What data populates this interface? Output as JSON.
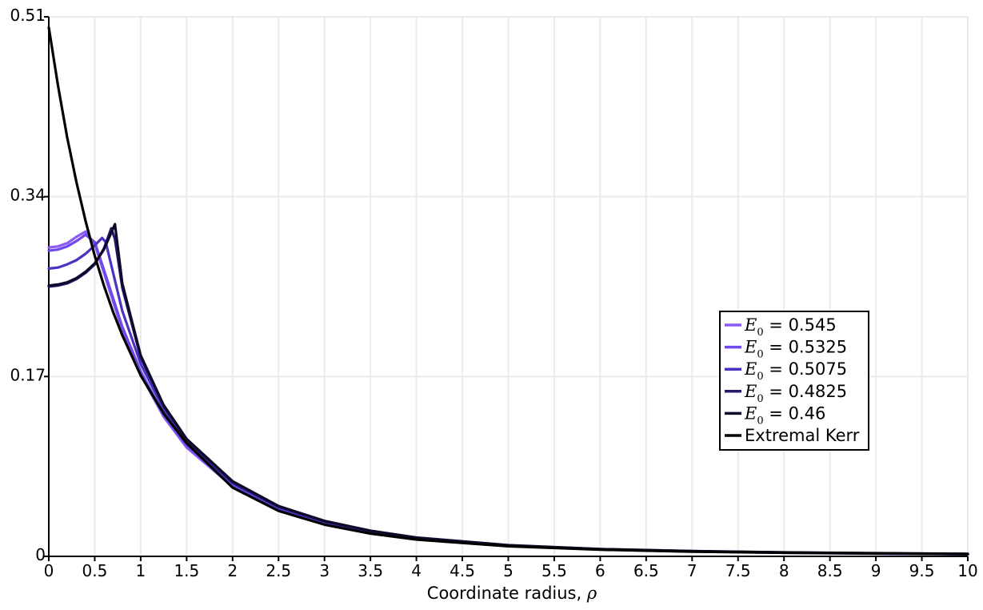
{
  "chart_data": {
    "type": "line",
    "title": "",
    "xlabel": "Coordinate radius, ",
    "xlabel_symbol": "ρ",
    "ylabel": "",
    "xlim": [
      0,
      10
    ],
    "ylim": [
      0,
      0.51
    ],
    "x_ticks": [
      0,
      0.5,
      1,
      1.5,
      2,
      2.5,
      3,
      3.5,
      4,
      4.5,
      5,
      5.5,
      6,
      6.5,
      7,
      7.5,
      8,
      8.5,
      9,
      9.5,
      10
    ],
    "x_tick_labels": [
      "0",
      "0.5",
      "1",
      "1.5",
      "2",
      "2.5",
      "3",
      "3.5",
      "4",
      "4.5",
      "5",
      "5.5",
      "6",
      "6.5",
      "7",
      "7.5",
      "8",
      "8.5",
      "9",
      "9.5",
      "10"
    ],
    "y_ticks": [
      0,
      0.17,
      0.34,
      0.51
    ],
    "y_tick_labels": [
      "0",
      "0.17",
      "0.34",
      "0.51"
    ],
    "grid": true,
    "legend_position": "right",
    "legend_symbol": "E",
    "legend_subscript": "0",
    "series": [
      {
        "name": "0.545",
        "label_suffix": " = 0.545",
        "symbolic": true,
        "color": "#8a5cf5",
        "x": [
          0,
          0.1,
          0.2,
          0.3,
          0.4,
          0.5,
          0.6,
          0.8,
          1.0,
          1.25,
          1.5,
          2,
          2.5,
          3,
          3.5,
          4,
          5,
          6,
          7,
          8,
          9,
          10
        ],
        "y": [
          0.292,
          0.293,
          0.296,
          0.302,
          0.307,
          0.295,
          0.268,
          0.214,
          0.172,
          0.132,
          0.103,
          0.066,
          0.044,
          0.031,
          0.022,
          0.0165,
          0.0098,
          0.0065,
          0.0046,
          0.0034,
          0.0026,
          0.002
        ]
      },
      {
        "name": "0.5325",
        "label_suffix": " = 0.5325",
        "symbolic": true,
        "color": "#7048ec",
        "x": [
          0,
          0.1,
          0.2,
          0.3,
          0.4,
          0.5,
          0.6,
          0.8,
          1.0,
          1.25,
          1.5,
          2,
          2.5,
          3,
          3.5,
          4,
          5,
          6,
          7,
          8,
          9,
          10
        ],
        "y": [
          0.289,
          0.29,
          0.293,
          0.298,
          0.304,
          0.297,
          0.271,
          0.217,
          0.175,
          0.134,
          0.105,
          0.067,
          0.045,
          0.032,
          0.023,
          0.0168,
          0.01,
          0.0066,
          0.0047,
          0.0035,
          0.0027,
          0.0021
        ]
      },
      {
        "name": "0.5075",
        "label_suffix": " = 0.5075",
        "symbolic": true,
        "color": "#4a32c2",
        "x": [
          0,
          0.1,
          0.2,
          0.3,
          0.4,
          0.5,
          0.58,
          0.62,
          0.7,
          0.8,
          1.0,
          1.25,
          1.5,
          2,
          2.5,
          3,
          3.5,
          4,
          5,
          6,
          7,
          8,
          9,
          10
        ],
        "y": [
          0.272,
          0.273,
          0.276,
          0.28,
          0.286,
          0.294,
          0.301,
          0.297,
          0.268,
          0.232,
          0.182,
          0.139,
          0.108,
          0.069,
          0.046,
          0.0325,
          0.0235,
          0.0172,
          0.0102,
          0.0067,
          0.0048,
          0.0036,
          0.0028,
          0.0022
        ]
      },
      {
        "name": "0.4825",
        "label_suffix": " = 0.4825",
        "symbolic": true,
        "color": "#261a70",
        "x": [
          0,
          0.1,
          0.2,
          0.3,
          0.4,
          0.5,
          0.6,
          0.68,
          0.72,
          0.8,
          1.0,
          1.25,
          1.5,
          2,
          2.5,
          3,
          3.5,
          4,
          5,
          6,
          7,
          8,
          9,
          10
        ],
        "y": [
          0.255,
          0.256,
          0.258,
          0.262,
          0.268,
          0.276,
          0.291,
          0.31,
          0.3,
          0.254,
          0.188,
          0.142,
          0.11,
          0.07,
          0.047,
          0.033,
          0.024,
          0.0175,
          0.0104,
          0.0068,
          0.0049,
          0.0037,
          0.0029,
          0.0023
        ]
      },
      {
        "name": "0.46",
        "label_suffix": " = 0.46",
        "symbolic": true,
        "color": "#0f0a2a",
        "x": [
          0,
          0.1,
          0.2,
          0.3,
          0.4,
          0.5,
          0.6,
          0.7,
          0.72,
          0.8,
          1.0,
          1.25,
          1.5,
          2,
          2.5,
          3,
          3.5,
          4,
          5,
          6,
          7,
          8,
          9,
          10
        ],
        "y": [
          0.256,
          0.257,
          0.259,
          0.263,
          0.269,
          0.277,
          0.29,
          0.31,
          0.314,
          0.258,
          0.19,
          0.143,
          0.111,
          0.071,
          0.0475,
          0.0335,
          0.0243,
          0.0178,
          0.0106,
          0.0069,
          0.005,
          0.0038,
          0.003,
          0.0024
        ]
      },
      {
        "name": "Extremal Kerr",
        "label_suffix": "Extremal Kerr",
        "symbolic": false,
        "color": "#000000",
        "x": [
          0,
          0.1,
          0.2,
          0.3,
          0.4,
          0.5,
          0.6,
          0.7,
          0.8,
          1.0,
          1.25,
          1.5,
          2,
          2.5,
          3,
          3.5,
          4,
          5,
          6,
          7,
          8,
          9,
          10
        ],
        "y": [
          0.5,
          0.445,
          0.396,
          0.354,
          0.317,
          0.284,
          0.256,
          0.231,
          0.209,
          0.171,
          0.135,
          0.107,
          0.065,
          0.043,
          0.03,
          0.0215,
          0.0159,
          0.0095,
          0.0063,
          0.0045,
          0.0034,
          0.0027,
          0.0022
        ]
      }
    ]
  }
}
